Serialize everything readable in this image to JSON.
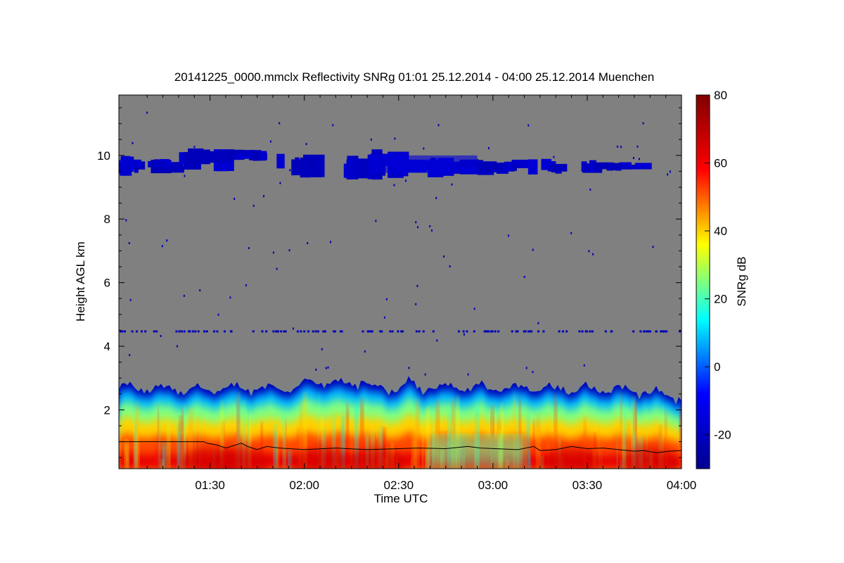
{
  "chart_data": {
    "type": "heatmap",
    "title": "20141225_0000.mmclx Reflectivity SNRg   01:01 25.12.2014 - 04:00 25.12.2014 Muenchen",
    "xlabel": "Time UTC",
    "ylabel": "Height AGL km",
    "colorbar_label": "SNRg dB",
    "x_range": [
      "01:01",
      "04:00"
    ],
    "ylim": [
      0.15,
      11.9
    ],
    "x_ticks": [
      "01:30",
      "02:00",
      "02:30",
      "03:00",
      "03:30",
      "04:00"
    ],
    "y_ticks": [
      2,
      4,
      6,
      8,
      10
    ],
    "colorbar_range": [
      -30,
      80
    ],
    "colorbar_ticks": [
      -20,
      0,
      20,
      40,
      60,
      80
    ],
    "no_signal_color": "#808080",
    "colormap": [
      "#00008f",
      "#0000ff",
      "#00ffff",
      "#ffff00",
      "#ff0000",
      "#800000"
    ],
    "layers": [
      {
        "name": "upper cloud layer",
        "x_start": "01:01",
        "x_end": "03:47",
        "height_km": [
          9.2,
          10.4
        ],
        "snr_db": [
          -25,
          -15
        ]
      },
      {
        "name": "boundary layer echo",
        "x_start": "01:01",
        "x_end": "04:00",
        "height_km": [
          0.15,
          2.9
        ],
        "snr_db": [
          -25,
          70
        ]
      },
      {
        "name": "range artifact",
        "x_start": "01:01",
        "x_end": "04:00",
        "height_km": [
          4.45,
          4.5
        ],
        "snr_db": [
          -25,
          -20
        ]
      }
    ],
    "line": {
      "times": [
        "01:01",
        "01:28",
        "01:29",
        "01:32",
        "01:35",
        "01:40",
        "01:42",
        "01:45",
        "01:48",
        "01:52",
        "02:00",
        "02:10",
        "02:20",
        "02:30",
        "02:36",
        "02:45",
        "02:52",
        "02:56",
        "03:08",
        "03:13",
        "03:15",
        "03:20",
        "03:25",
        "03:30",
        "03:35",
        "03:40",
        "03:45",
        "03:48",
        "03:52",
        "03:56",
        "04:00"
      ],
      "height_km": [
        1.0,
        1.0,
        0.95,
        0.9,
        0.8,
        0.95,
        0.85,
        0.75,
        0.85,
        0.8,
        0.75,
        0.8,
        0.75,
        0.78,
        0.8,
        0.78,
        0.85,
        0.8,
        0.75,
        0.85,
        0.72,
        0.75,
        0.85,
        0.78,
        0.8,
        0.75,
        0.7,
        0.72,
        0.65,
        0.7,
        0.72
      ]
    }
  }
}
